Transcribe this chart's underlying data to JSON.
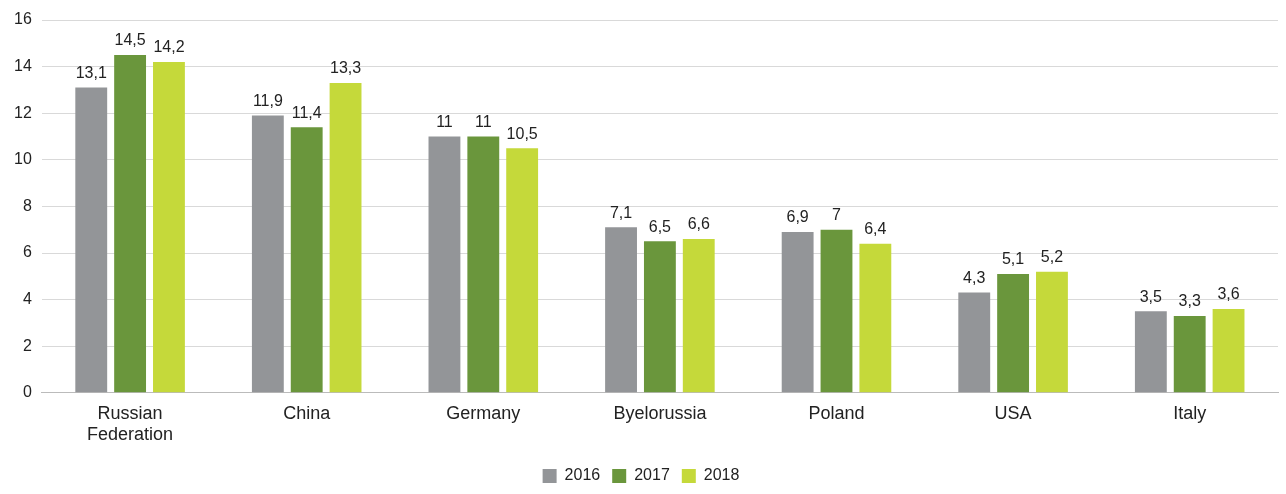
{
  "chart_data": {
    "type": "bar",
    "categories": [
      "Russian Federation",
      "China",
      "Germany",
      "Byelorussia",
      "Poland",
      "USA",
      "Italy"
    ],
    "series": [
      {
        "name": "2016",
        "color": "#939598",
        "values": [
          13.1,
          11.9,
          11,
          7.1,
          6.9,
          4.3,
          3.5
        ],
        "value_labels": [
          "13,1",
          "11,9",
          "11",
          "7,1",
          "6,9",
          "4,3",
          "3,5"
        ]
      },
      {
        "name": "2017",
        "color": "#6a963c",
        "values": [
          14.5,
          11.4,
          11,
          6.5,
          7,
          5.1,
          3.3
        ],
        "value_labels": [
          "14,5",
          "11,4",
          "11",
          "6,5",
          "7",
          "5,1",
          "3,3"
        ]
      },
      {
        "name": "2018",
        "color": "#c5d93a",
        "values": [
          14.2,
          13.3,
          10.5,
          6.6,
          6.4,
          5.2,
          3.6
        ],
        "value_labels": [
          "14,2",
          "13,3",
          "10,5",
          "6,6",
          "6,4",
          "5,2",
          "3,6"
        ]
      }
    ],
    "ylim": [
      0,
      16
    ],
    "yticks": [
      0,
      2,
      4,
      6,
      8,
      10,
      12,
      14,
      16
    ],
    "grid": "y",
    "legend": "bottom"
  }
}
